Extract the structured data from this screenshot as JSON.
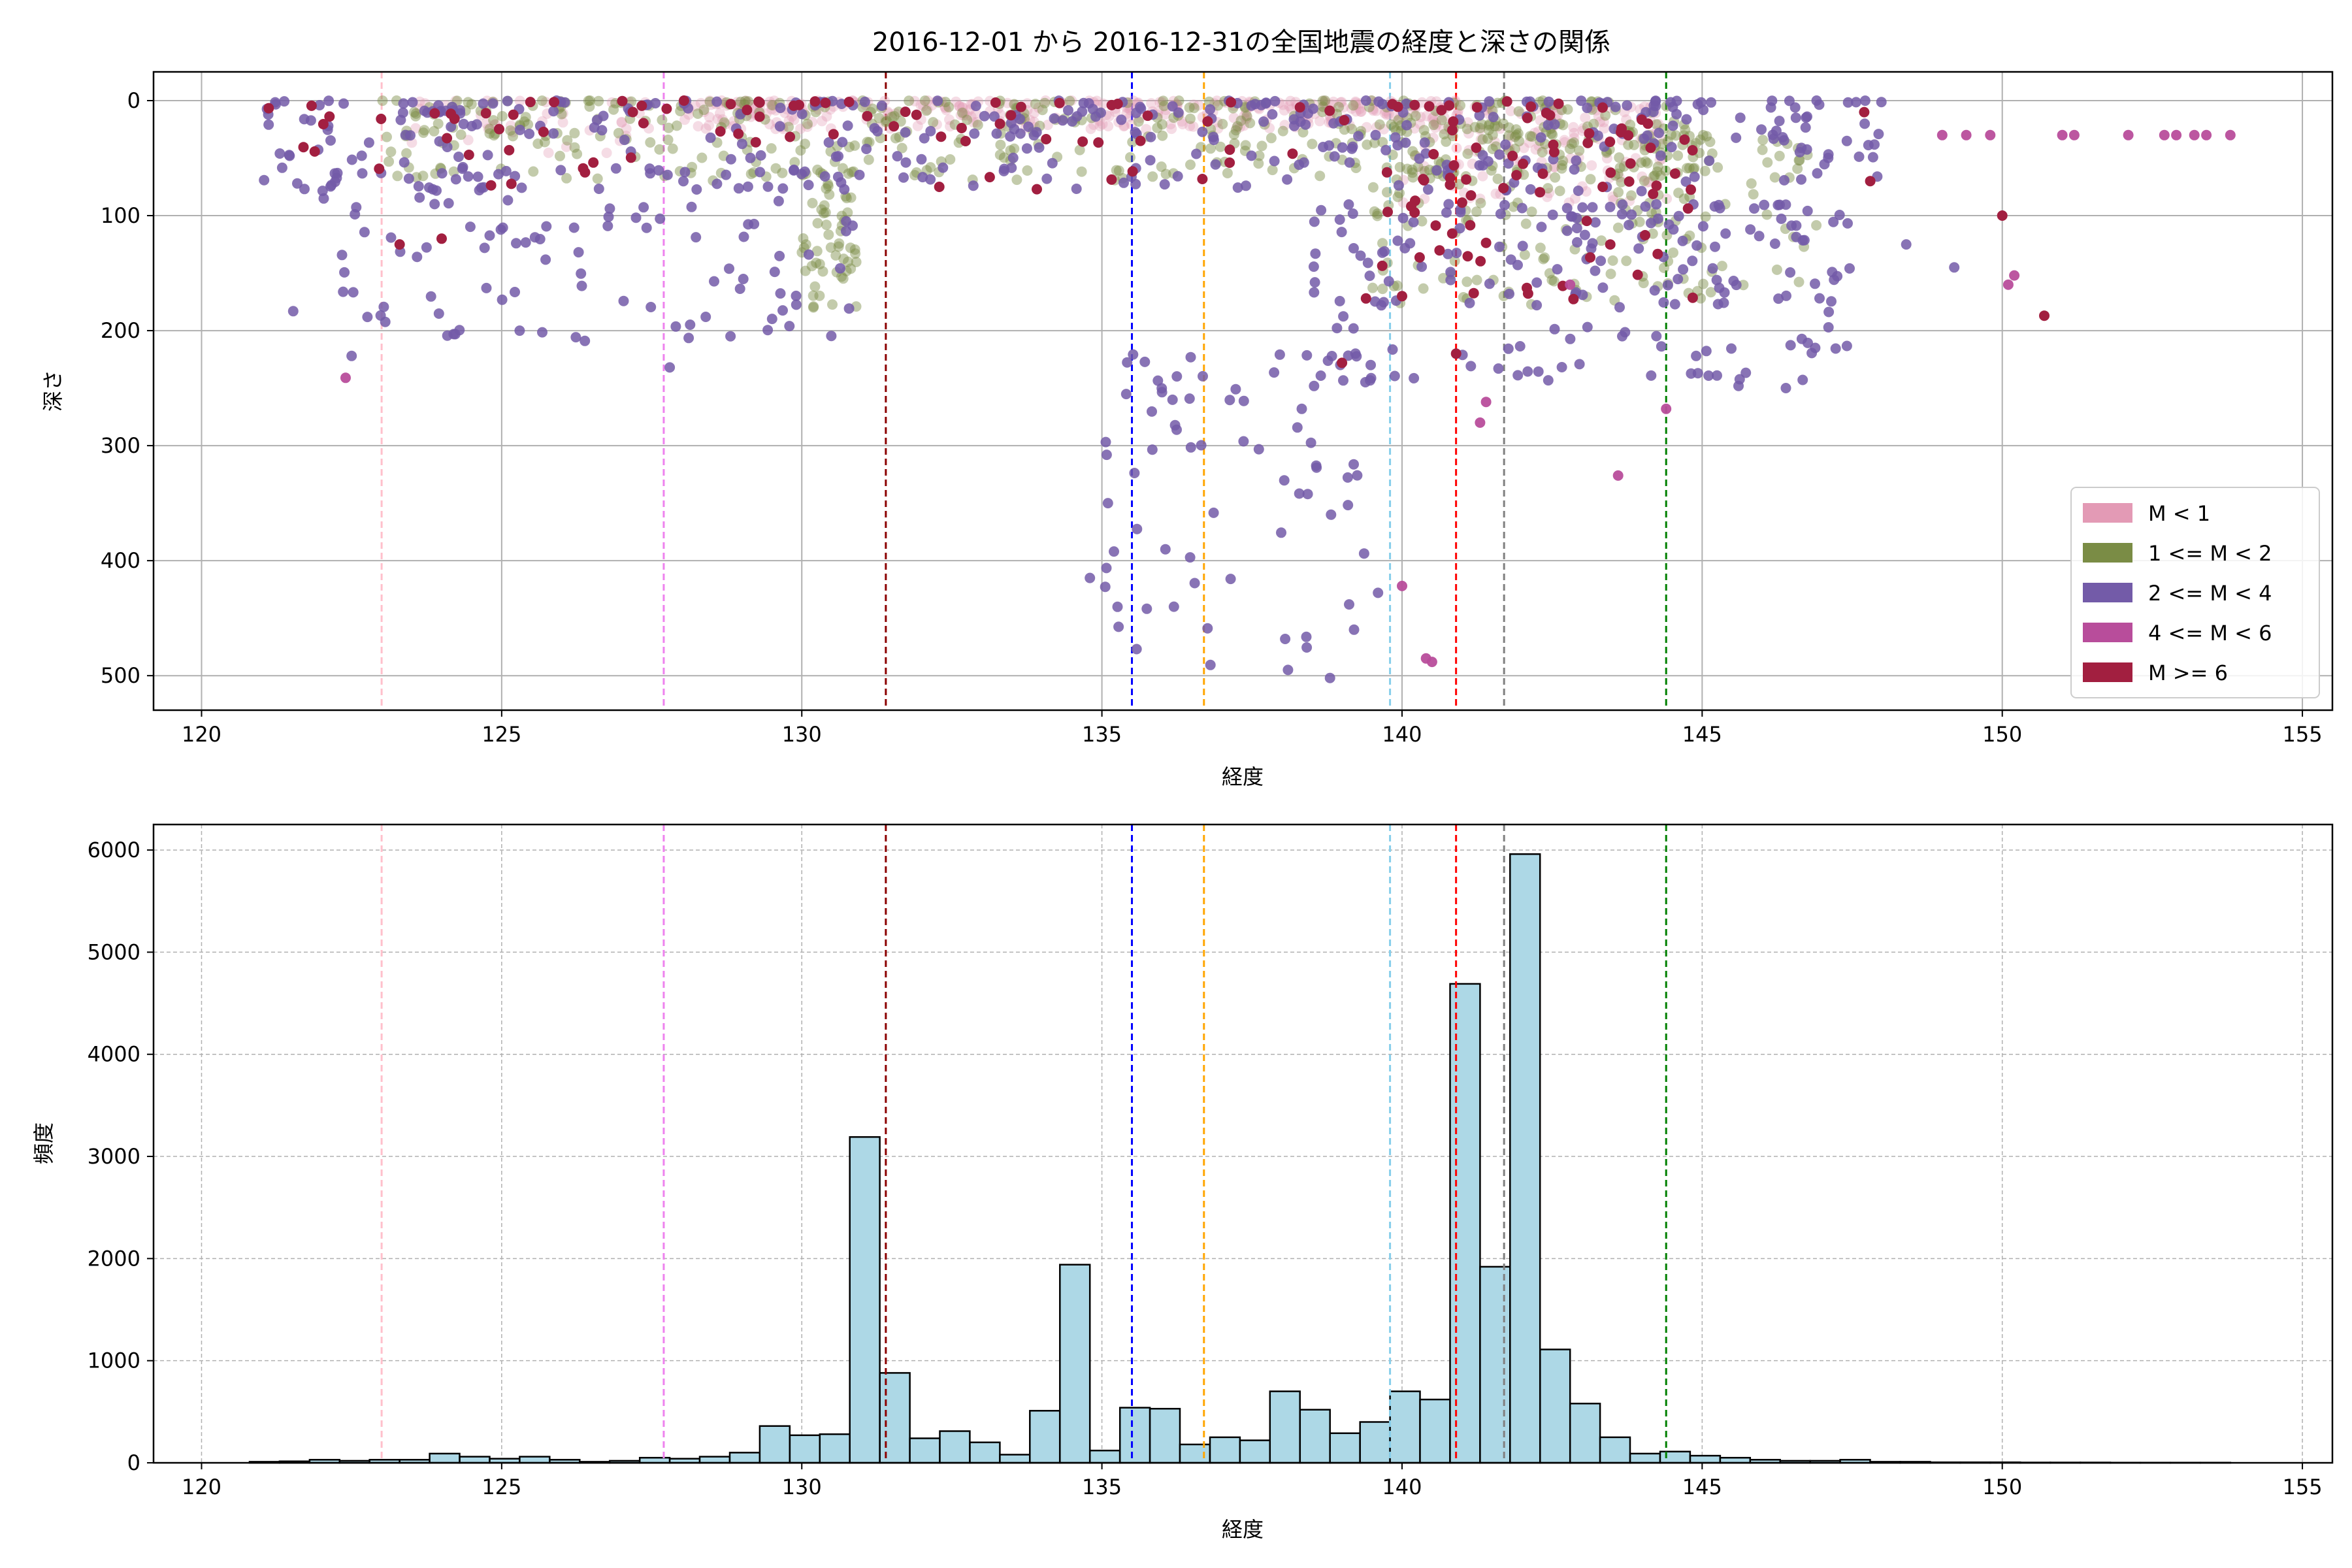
{
  "figure": {
    "title": "2016-12-01 から 2016-12-31の全国地震の経度と深さの関係"
  },
  "colors": {
    "mag_lt1": "#e39ab5",
    "mag_1_2": "#7a8c45",
    "mag_2_4": "#735ba8",
    "mag_4_6": "#b84d9b",
    "mag_ge6": "#a21f40",
    "hist_fill": "#add8e6",
    "grid": "#b0b0b0"
  },
  "chart_data": [
    {
      "type": "scatter",
      "xlabel": "経度",
      "ylabel": "深さ",
      "xlim": [
        119.2,
        155.5
      ],
      "ylim": [
        530,
        -25
      ],
      "y_inverted": true,
      "xticks": [
        120,
        125,
        130,
        135,
        140,
        145,
        150,
        155
      ],
      "yticks": [
        0,
        100,
        200,
        300,
        400,
        500
      ],
      "grid": true,
      "legend_position": "lower-right",
      "legend": [
        {
          "label": "M < 1",
          "color": "#e39ab5"
        },
        {
          "label": "1 <= M < 2",
          "color": "#7a8c45"
        },
        {
          "label": "2 <= M < 4",
          "color": "#735ba8"
        },
        {
          "label": "4 <= M < 6",
          "color": "#b84d9b"
        },
        {
          "label": "M >= 6",
          "color": "#a21f40"
        }
      ],
      "vlines": [
        {
          "x": 123.0,
          "color": "#ffc0cb"
        },
        {
          "x": 127.7,
          "color": "#ee82ee"
        },
        {
          "x": 131.4,
          "color": "#8b0000"
        },
        {
          "x": 135.5,
          "color": "#0000ff"
        },
        {
          "x": 136.7,
          "color": "#ffa500"
        },
        {
          "x": 139.8,
          "color": "#87ceeb"
        },
        {
          "x": 140.9,
          "color": "#ff0000"
        },
        {
          "x": 141.7,
          "color": "#808080"
        },
        {
          "x": 144.4,
          "color": "#008000"
        }
      ],
      "clusters": [
        {
          "group": "mag_lt1",
          "x": [
            128,
            141
          ],
          "y": [
            0,
            25
          ],
          "n": 320
        },
        {
          "group": "mag_lt1",
          "x": [
            140,
            144.5
          ],
          "y": [
            5,
            90
          ],
          "n": 140
        },
        {
          "group": "mag_lt1",
          "x": [
            123.5,
            127.5
          ],
          "y": [
            0,
            50
          ],
          "n": 40
        },
        {
          "group": "mag_1_2",
          "x": [
            123,
            145
          ],
          "y": [
            0,
            70
          ],
          "n": 420
        },
        {
          "group": "mag_1_2",
          "x": [
            139.5,
            145
          ],
          "y": [
            20,
            180
          ],
          "n": 180
        },
        {
          "group": "mag_1_2",
          "x": [
            130,
            131
          ],
          "y": [
            60,
            180
          ],
          "n": 60
        },
        {
          "group": "mag_1_2",
          "x": [
            144,
            147
          ],
          "y": [
            30,
            170
          ],
          "n": 60
        },
        {
          "group": "mag_2_4",
          "x": [
            121,
            148
          ],
          "y": [
            0,
            80
          ],
          "n": 380
        },
        {
          "group": "mag_2_4",
          "x": [
            121.5,
            131
          ],
          "y": [
            60,
            210
          ],
          "n": 110
        },
        {
          "group": "mag_2_4",
          "x": [
            138.5,
            147.5
          ],
          "y": [
            90,
            250
          ],
          "n": 190
        },
        {
          "group": "mag_2_4",
          "x": [
            135,
            139.5
          ],
          "y": [
            220,
            500
          ],
          "n": 70
        },
        {
          "group": "mag_ge6",
          "x": [
            121,
            145
          ],
          "y": [
            0,
            80
          ],
          "n": 120
        },
        {
          "group": "mag_ge6",
          "x": [
            139.5,
            145
          ],
          "y": [
            60,
            180
          ],
          "n": 40
        }
      ],
      "points": [
        {
          "group": "mag_4_6",
          "x": 149.0,
          "y": 30
        },
        {
          "group": "mag_4_6",
          "x": 149.4,
          "y": 30
        },
        {
          "group": "mag_4_6",
          "x": 149.8,
          "y": 30
        },
        {
          "group": "mag_4_6",
          "x": 151.0,
          "y": 30
        },
        {
          "group": "mag_4_6",
          "x": 151.2,
          "y": 30
        },
        {
          "group": "mag_4_6",
          "x": 152.1,
          "y": 30
        },
        {
          "group": "mag_4_6",
          "x": 152.7,
          "y": 30
        },
        {
          "group": "mag_4_6",
          "x": 152.9,
          "y": 30
        },
        {
          "group": "mag_4_6",
          "x": 153.2,
          "y": 30
        },
        {
          "group": "mag_4_6",
          "x": 153.4,
          "y": 30
        },
        {
          "group": "mag_4_6",
          "x": 153.8,
          "y": 30
        },
        {
          "group": "mag_4_6",
          "x": 150.1,
          "y": 160
        },
        {
          "group": "mag_4_6",
          "x": 150.2,
          "y": 152
        },
        {
          "group": "mag_4_6",
          "x": 122.4,
          "y": 241
        },
        {
          "group": "mag_4_6",
          "x": 140.0,
          "y": 422
        },
        {
          "group": "mag_4_6",
          "x": 140.4,
          "y": 485
        },
        {
          "group": "mag_4_6",
          "x": 140.5,
          "y": 488
        },
        {
          "group": "mag_4_6",
          "x": 141.3,
          "y": 280
        },
        {
          "group": "mag_4_6",
          "x": 141.4,
          "y": 262
        },
        {
          "group": "mag_4_6",
          "x": 142.8,
          "y": 160
        },
        {
          "group": "mag_4_6",
          "x": 143.6,
          "y": 326
        },
        {
          "group": "mag_4_6",
          "x": 144.4,
          "y": 268
        },
        {
          "group": "mag_ge6",
          "x": 150.0,
          "y": 100
        },
        {
          "group": "mag_ge6",
          "x": 150.7,
          "y": 187
        },
        {
          "group": "mag_ge6",
          "x": 140.9,
          "y": 220
        },
        {
          "group": "mag_ge6",
          "x": 139.0,
          "y": 228
        },
        {
          "group": "mag_ge6",
          "x": 139.4,
          "y": 172
        },
        {
          "group": "mag_ge6",
          "x": 140.0,
          "y": 170
        },
        {
          "group": "mag_ge6",
          "x": 147.8,
          "y": 70
        },
        {
          "group": "mag_ge6",
          "x": 147.7,
          "y": 10
        },
        {
          "group": "mag_ge6",
          "x": 123.3,
          "y": 125
        },
        {
          "group": "mag_ge6",
          "x": 124.0,
          "y": 120
        },
        {
          "group": "mag_2_4",
          "x": 122.5,
          "y": 222
        },
        {
          "group": "mag_2_4",
          "x": 124.2,
          "y": 203
        },
        {
          "group": "mag_2_4",
          "x": 125.3,
          "y": 200
        },
        {
          "group": "mag_2_4",
          "x": 127.8,
          "y": 232
        },
        {
          "group": "mag_2_4",
          "x": 128.4,
          "y": 188
        },
        {
          "group": "mag_2_4",
          "x": 134.8,
          "y": 415
        },
        {
          "group": "mag_2_4",
          "x": 135.1,
          "y": 350
        },
        {
          "group": "mag_2_4",
          "x": 135.2,
          "y": 392
        },
        {
          "group": "mag_2_4",
          "x": 136.2,
          "y": 440
        },
        {
          "group": "mag_2_4",
          "x": 138.1,
          "y": 495
        },
        {
          "group": "mag_2_4",
          "x": 138.8,
          "y": 502
        },
        {
          "group": "mag_2_4",
          "x": 139.2,
          "y": 460
        },
        {
          "group": "mag_2_4",
          "x": 139.6,
          "y": 428
        },
        {
          "group": "mag_2_4",
          "x": 149.2,
          "y": 145
        },
        {
          "group": "mag_2_4",
          "x": 148.4,
          "y": 125
        },
        {
          "group": "mag_2_4",
          "x": 144.9,
          "y": 222
        }
      ]
    },
    {
      "type": "bar",
      "subtype": "histogram",
      "xlabel": "経度",
      "ylabel": "頻度",
      "xlim": [
        119.2,
        155.5
      ],
      "ylim": [
        0,
        6250
      ],
      "xticks": [
        120,
        125,
        130,
        135,
        140,
        145,
        150,
        155
      ],
      "yticks": [
        0,
        1000,
        2000,
        3000,
        4000,
        5000,
        6000
      ],
      "grid": true,
      "bin_start": 120.8,
      "bin_width": 0.5,
      "values": [
        10,
        15,
        30,
        20,
        30,
        30,
        90,
        60,
        40,
        60,
        30,
        10,
        20,
        50,
        40,
        60,
        100,
        360,
        270,
        280,
        3190,
        880,
        240,
        310,
        200,
        80,
        510,
        1940,
        120,
        540,
        530,
        180,
        250,
        220,
        700,
        520,
        290,
        400,
        700,
        620,
        4690,
        1920,
        5960,
        1110,
        580,
        250,
        90,
        110,
        70,
        50,
        30,
        20,
        20,
        30,
        10,
        10,
        5,
        5,
        5,
        3,
        3,
        3,
        2,
        2,
        2,
        2
      ],
      "vlines": [
        {
          "x": 123.0,
          "color": "#ffc0cb"
        },
        {
          "x": 127.7,
          "color": "#ee82ee"
        },
        {
          "x": 131.4,
          "color": "#8b0000"
        },
        {
          "x": 135.5,
          "color": "#0000ff"
        },
        {
          "x": 136.7,
          "color": "#ffa500"
        },
        {
          "x": 139.8,
          "color": "#87ceeb"
        },
        {
          "x": 140.9,
          "color": "#ff0000"
        },
        {
          "x": 141.7,
          "color": "#808080"
        },
        {
          "x": 144.4,
          "color": "#008000"
        }
      ]
    }
  ]
}
